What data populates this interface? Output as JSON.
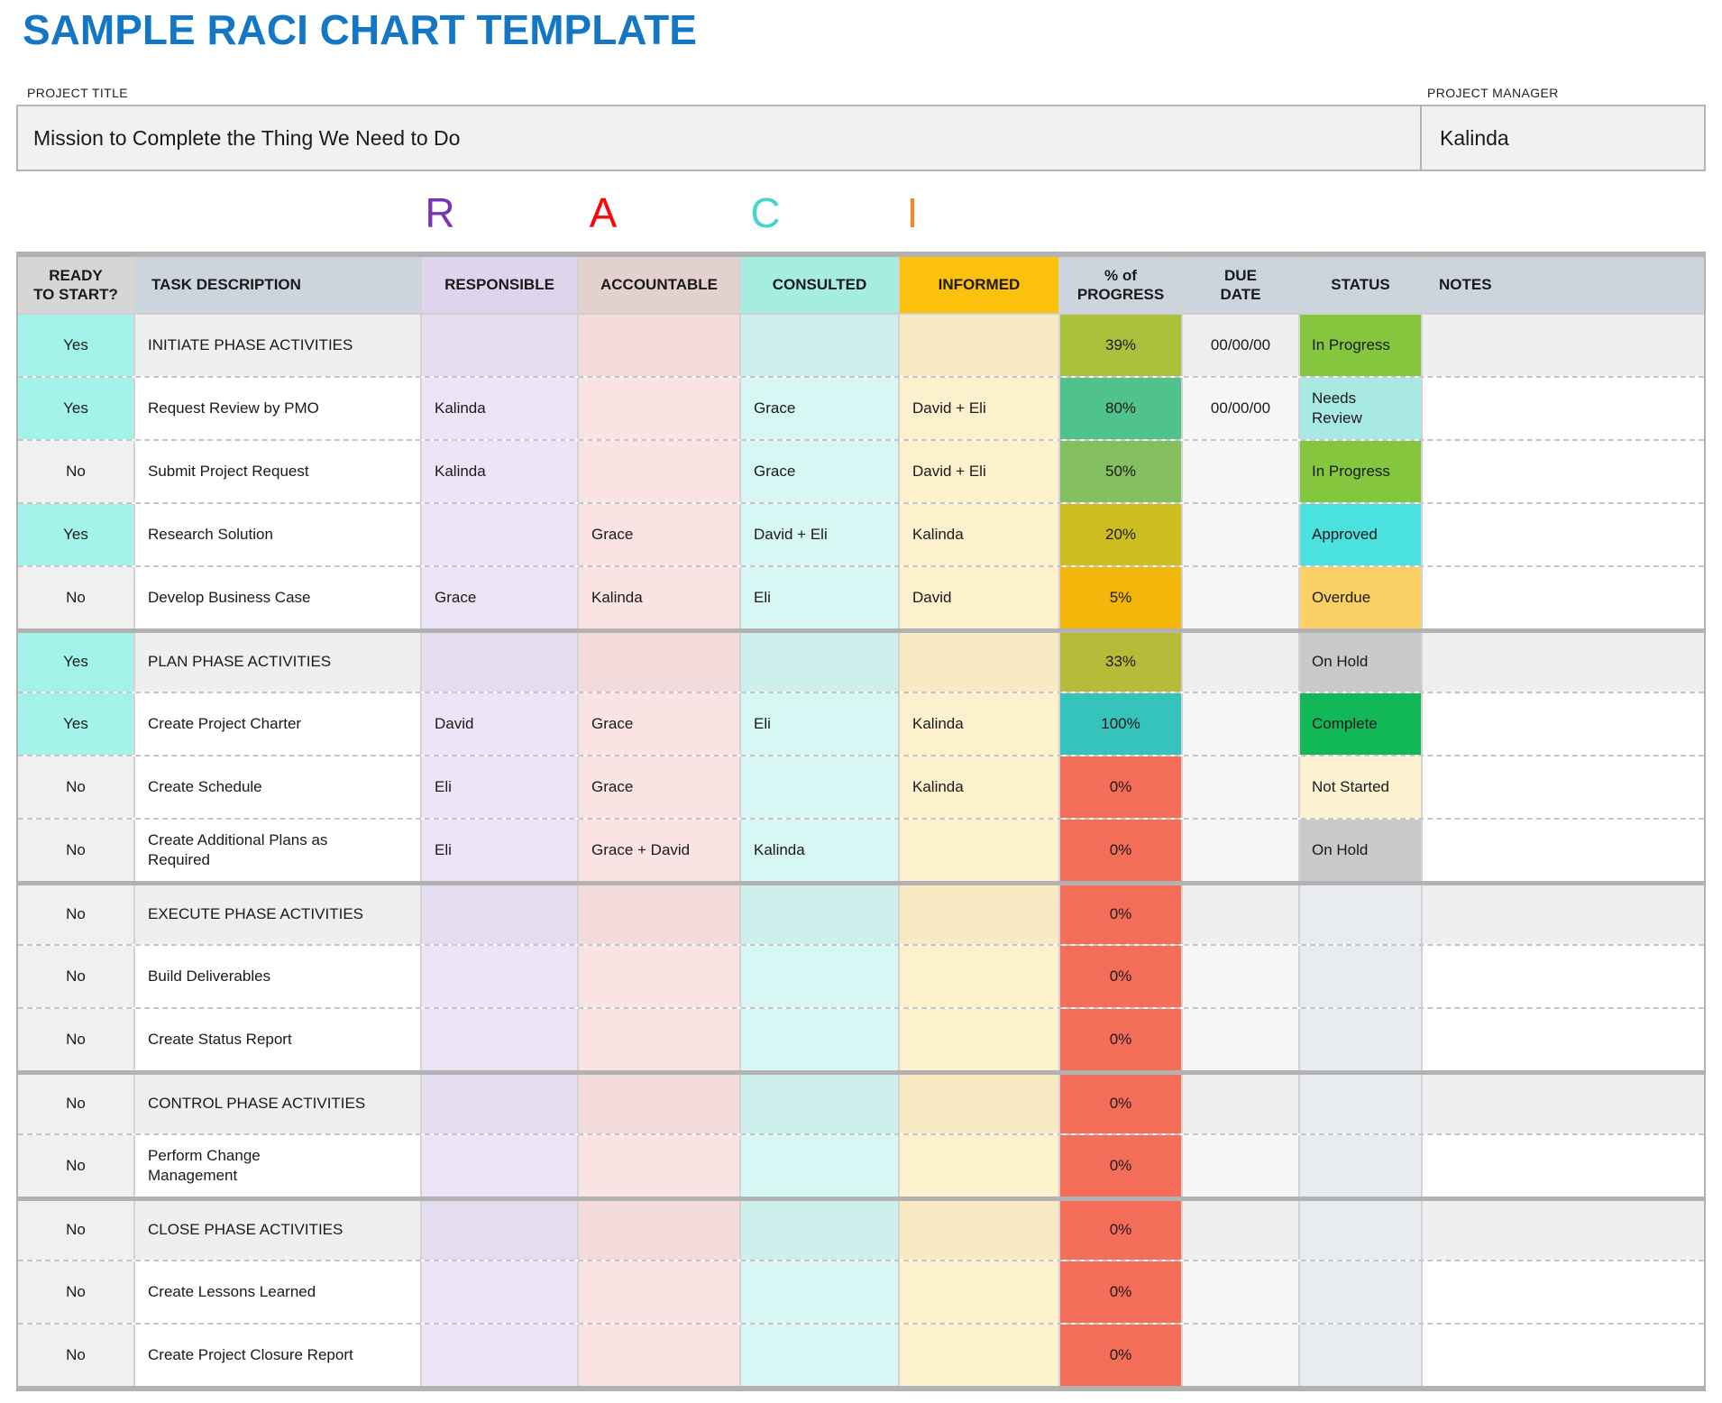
{
  "page_title": "SAMPLE RACI CHART TEMPLATE",
  "title_color": "#1377c5",
  "project": {
    "title_label": "PROJECT TITLE",
    "title_value": "Mission to Complete the Thing We Need to Do",
    "manager_label": "PROJECT MANAGER",
    "manager_value": "Kalinda"
  },
  "raci_letters": [
    {
      "letter": "R",
      "color": "#7b35b2"
    },
    {
      "letter": "A",
      "color": "#fb0509"
    },
    {
      "letter": "C",
      "color": "#46d6c8"
    },
    {
      "letter": "I",
      "color": "#ee8b33"
    }
  ],
  "table": {
    "columns": [
      {
        "key": "ready",
        "label": "READY\nTO START?",
        "bg": "#d6d6d6"
      },
      {
        "key": "task",
        "label": "TASK DESCRIPTION",
        "bg": "#ccd5de"
      },
      {
        "key": "responsible",
        "label": "RESPONSIBLE",
        "bg": "#ded5ec"
      },
      {
        "key": "accountable",
        "label": "ACCOUNTABLE",
        "bg": "#e3d1cd"
      },
      {
        "key": "consulted",
        "label": "CONSULTED",
        "bg": "#a6ede1"
      },
      {
        "key": "informed",
        "label": "INFORMED",
        "bg": "#fcc10a"
      },
      {
        "key": "progress",
        "label": "% of\nPROGRESS",
        "bg": "#ccd5de"
      },
      {
        "key": "due",
        "label": "DUE\nDATE",
        "bg": "#ccd5de"
      },
      {
        "key": "status",
        "label": "STATUS",
        "bg": "#ccd5de"
      },
      {
        "key": "notes",
        "label": "NOTES",
        "bg": "#ccd5de"
      }
    ],
    "rows": [
      {
        "ready": "Yes",
        "task": "INITIATE PHASE ACTIVITIES",
        "responsible": "",
        "accountable": "",
        "consulted": "",
        "informed": "",
        "progress": "39%",
        "progress_color": "#a9c13d",
        "due": "00/00/00",
        "status": "In Progress",
        "status_color": "#85c63f",
        "notes": "",
        "phase": true,
        "section_start": false
      },
      {
        "ready": "Yes",
        "task": "Request Review by PMO",
        "responsible": "Kalinda",
        "accountable": "",
        "consulted": "Grace",
        "informed": "David + Eli",
        "progress": "80%",
        "progress_color": "#50c38c",
        "due": "00/00/00",
        "status": "Needs\nReview",
        "status_color": "#a9e9e3",
        "notes": "",
        "phase": false,
        "section_start": false
      },
      {
        "ready": "No",
        "task": "Submit Project Request",
        "responsible": "Kalinda",
        "accountable": "",
        "consulted": "Grace",
        "informed": "David + Eli",
        "progress": "50%",
        "progress_color": "#84c05f",
        "due": "",
        "status": "In Progress",
        "status_color": "#85c63f",
        "notes": "",
        "phase": false,
        "section_start": false
      },
      {
        "ready": "Yes",
        "task": "Research Solution",
        "responsible": "",
        "accountable": "Grace",
        "consulted": "David + Eli",
        "informed": "Kalinda",
        "progress": "20%",
        "progress_color": "#cebd20",
        "due": "",
        "status": "Approved",
        "status_color": "#4be1de",
        "notes": "",
        "phase": false,
        "section_start": false
      },
      {
        "ready": "No",
        "task": "Develop Business Case",
        "responsible": "Grace",
        "accountable": "Kalinda",
        "consulted": "Eli",
        "informed": "David",
        "progress": "5%",
        "progress_color": "#f2b70a",
        "due": "",
        "status": "Overdue",
        "status_color": "#fbd166",
        "notes": "",
        "phase": false,
        "section_start": false
      },
      {
        "ready": "Yes",
        "task": "PLAN PHASE ACTIVITIES",
        "responsible": "",
        "accountable": "",
        "consulted": "",
        "informed": "",
        "progress": "33%",
        "progress_color": "#b6bc3a",
        "due": "",
        "status": "On Hold",
        "status_color": "#c9c9c9",
        "notes": "",
        "phase": true,
        "section_start": true
      },
      {
        "ready": "Yes",
        "task": "Create Project Charter",
        "responsible": "David",
        "accountable": "Grace",
        "consulted": "Eli",
        "informed": "Kalinda",
        "progress": "100%",
        "progress_color": "#36c3bb",
        "due": "",
        "status": "Complete",
        "status_color": "#12b757",
        "notes": "",
        "phase": false,
        "section_start": false
      },
      {
        "ready": "No",
        "task": "Create Schedule",
        "responsible": "Eli",
        "accountable": "Grace",
        "consulted": "",
        "informed": "Kalinda",
        "progress": "0%",
        "progress_color": "#f46d59",
        "due": "",
        "status": "Not Started",
        "status_color": "#fdf2d0",
        "notes": "",
        "phase": false,
        "section_start": false
      },
      {
        "ready": "No",
        "task": "Create Additional Plans as\nRequired",
        "responsible": "Eli",
        "accountable": "Grace + David",
        "consulted": "Kalinda",
        "informed": "",
        "progress": "0%",
        "progress_color": "#f46d59",
        "due": "",
        "status": "On Hold",
        "status_color": "#c9c9c9",
        "notes": "",
        "phase": false,
        "section_start": false
      },
      {
        "ready": "No",
        "task": "EXECUTE PHASE ACTIVITIES",
        "responsible": "",
        "accountable": "",
        "consulted": "",
        "informed": "",
        "progress": "0%",
        "progress_color": "#f46d59",
        "due": "",
        "status": "",
        "status_color": "",
        "notes": "",
        "phase": true,
        "section_start": true
      },
      {
        "ready": "No",
        "task": "Build Deliverables",
        "responsible": "",
        "accountable": "",
        "consulted": "",
        "informed": "",
        "progress": "0%",
        "progress_color": "#f46d59",
        "due": "",
        "status": "",
        "status_color": "",
        "notes": "",
        "phase": false,
        "section_start": false
      },
      {
        "ready": "No",
        "task": "Create Status Report",
        "responsible": "",
        "accountable": "",
        "consulted": "",
        "informed": "",
        "progress": "0%",
        "progress_color": "#f46d59",
        "due": "",
        "status": "",
        "status_color": "",
        "notes": "",
        "phase": false,
        "section_start": false
      },
      {
        "ready": "No",
        "task": "CONTROL PHASE ACTIVITIES",
        "responsible": "",
        "accountable": "",
        "consulted": "",
        "informed": "",
        "progress": "0%",
        "progress_color": "#f46d59",
        "due": "",
        "status": "",
        "status_color": "",
        "notes": "",
        "phase": true,
        "section_start": true
      },
      {
        "ready": "No",
        "task": "Perform Change\nManagement",
        "responsible": "",
        "accountable": "",
        "consulted": "",
        "informed": "",
        "progress": "0%",
        "progress_color": "#f46d59",
        "due": "",
        "status": "",
        "status_color": "",
        "notes": "",
        "phase": false,
        "section_start": false
      },
      {
        "ready": "No",
        "task": "CLOSE PHASE ACTIVITIES",
        "responsible": "",
        "accountable": "",
        "consulted": "",
        "informed": "",
        "progress": "0%",
        "progress_color": "#f46d59",
        "due": "",
        "status": "",
        "status_color": "",
        "notes": "",
        "phase": true,
        "section_start": true
      },
      {
        "ready": "No",
        "task": "Create Lessons Learned",
        "responsible": "",
        "accountable": "",
        "consulted": "",
        "informed": "",
        "progress": "0%",
        "progress_color": "#f46d59",
        "due": "",
        "status": "",
        "status_color": "",
        "notes": "",
        "phase": false,
        "section_start": false
      },
      {
        "ready": "No",
        "task": "Create Project Closure Report",
        "responsible": "",
        "accountable": "",
        "consulted": "",
        "informed": "",
        "progress": "0%",
        "progress_color": "#f46d59",
        "due": "",
        "status": "",
        "status_color": "",
        "notes": "",
        "phase": false,
        "section_start": false
      }
    ]
  }
}
